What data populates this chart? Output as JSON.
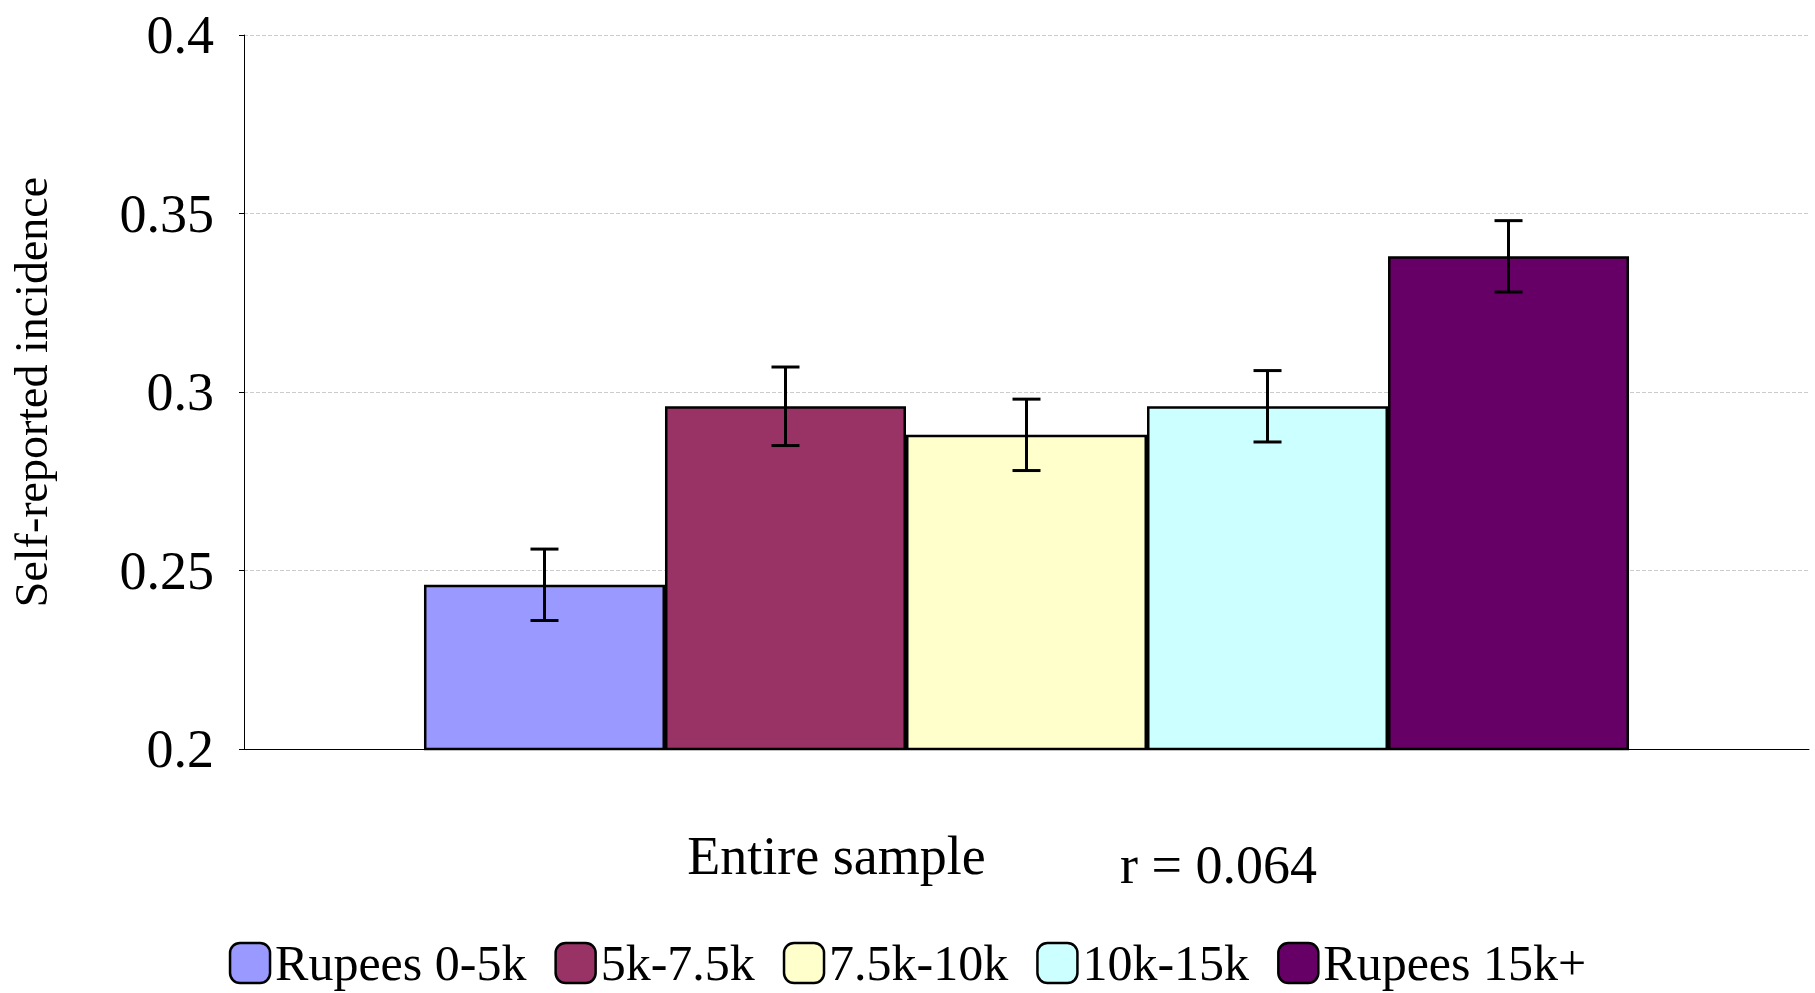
{
  "chart_data": {
    "type": "bar",
    "xlabel": null,
    "ylabel": "Self-reported incidence",
    "categories": [
      "Entire sample"
    ],
    "series": [
      {
        "name": "Rupees 0-5k",
        "color": "#9999ff",
        "values": [
          0.246
        ],
        "errors": [
          0.01
        ]
      },
      {
        "name": "5k-7.5k",
        "color": "#993366",
        "values": [
          0.296
        ],
        "errors": [
          0.011
        ]
      },
      {
        "name": "7.5k-10k",
        "color": "#ffffcc",
        "values": [
          0.288
        ],
        "errors": [
          0.01
        ]
      },
      {
        "name": "10k-15k",
        "color": "#ccffff",
        "values": [
          0.296
        ],
        "errors": [
          0.01
        ]
      },
      {
        "name": "Rupees 15k+",
        "color": "#660066",
        "values": [
          0.338
        ],
        "errors": [
          0.01
        ]
      }
    ],
    "annotations": [
      "r = 0.064"
    ],
    "ylim": [
      0.2,
      0.4
    ],
    "yticks": [
      0.2,
      0.25,
      0.3,
      0.35,
      0.4
    ],
    "grid": "y",
    "legend": "bottom"
  }
}
